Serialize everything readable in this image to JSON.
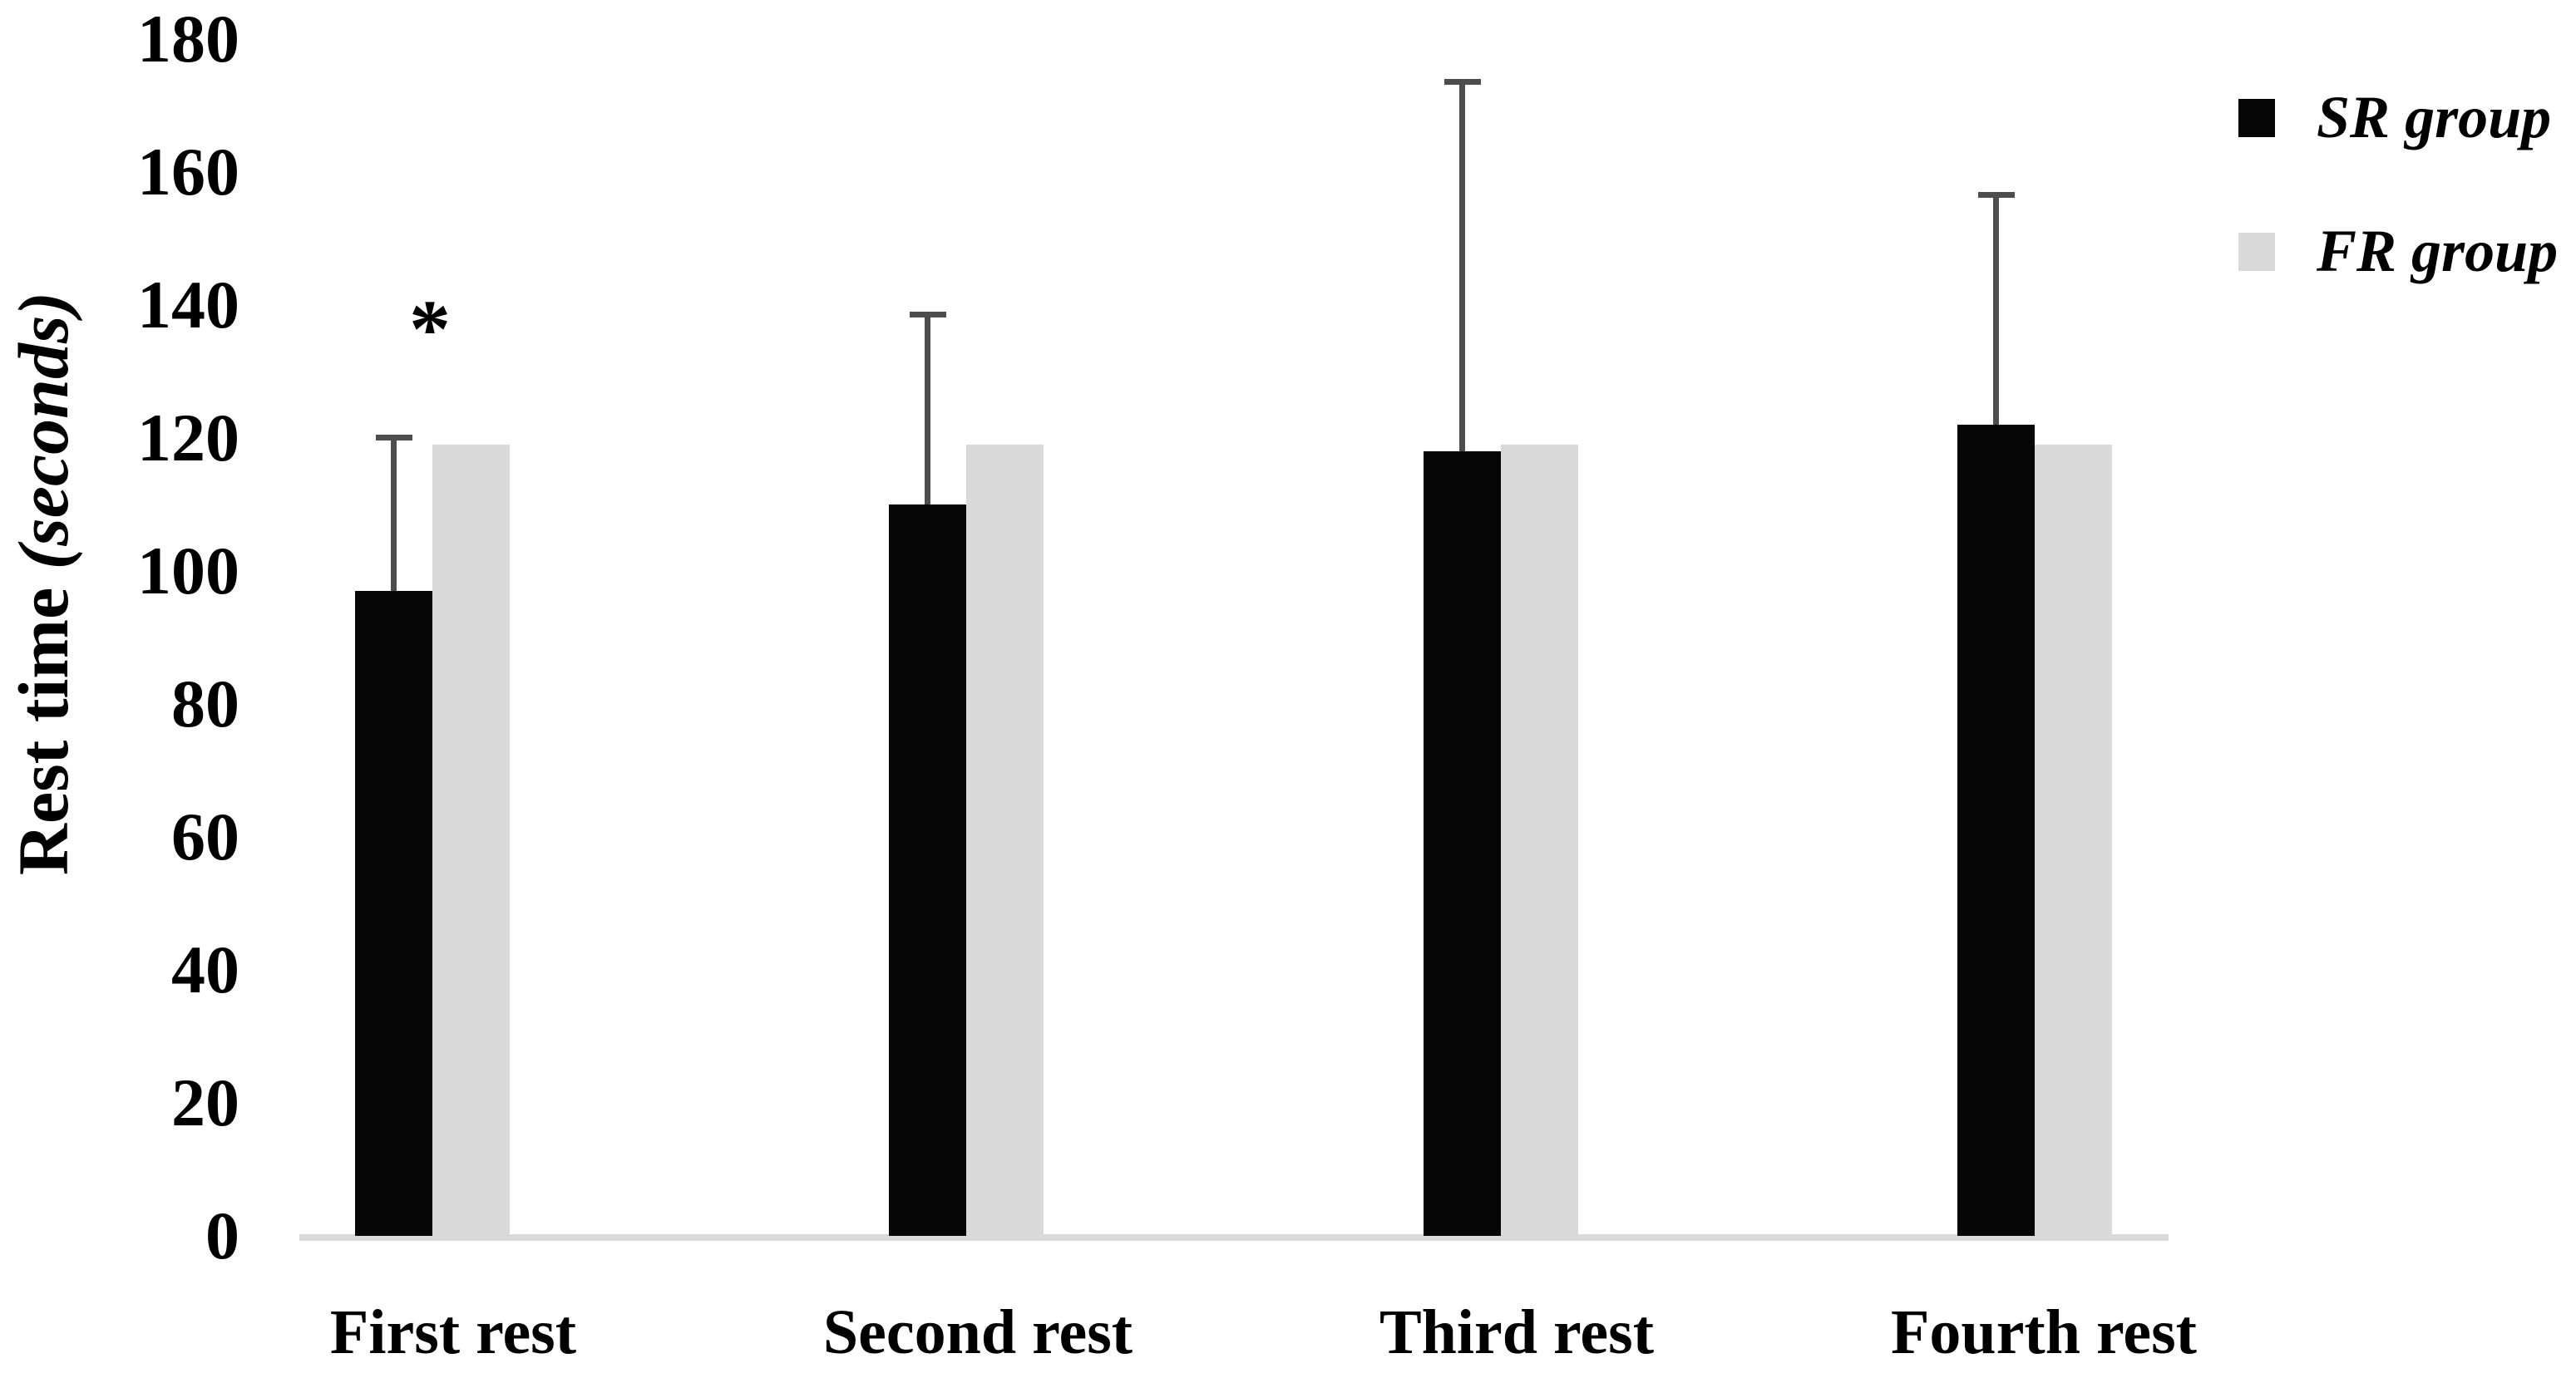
{
  "figure": {
    "y_axis_title_main": "Rest time ",
    "y_axis_title_unit": "(seconds)"
  },
  "legend": {
    "items": [
      {
        "label": "SR group",
        "color": "#060606"
      },
      {
        "label": "FR group",
        "color": "#d9d9d9"
      }
    ]
  },
  "chart_data": {
    "type": "bar",
    "title": "",
    "categories": [
      "First rest",
      "Second rest",
      "Third rest",
      "Fourth rest"
    ],
    "series": [
      {
        "name": "SR group",
        "color": "#060606",
        "values": [
          97,
          110,
          118,
          122
        ],
        "error_upper": [
          23.5,
          29,
          56,
          35
        ]
      },
      {
        "name": "FR group",
        "color": "#d9d9d9",
        "values": [
          119,
          119,
          119,
          119
        ],
        "error_upper": [
          0,
          0,
          0,
          0
        ]
      }
    ],
    "ylabel": "Rest time (seconds)",
    "xlabel": "",
    "ylim": [
      0,
      180
    ],
    "yticks": [
      0,
      20,
      40,
      60,
      80,
      100,
      120,
      140,
      160,
      180
    ],
    "grid": false,
    "legend_position": "top-right",
    "error_bar_color": "#4d4d4d",
    "axis_line_color": "#d9d9d9",
    "significance": {
      "category_index": 0,
      "series": "SR group",
      "symbol": "*"
    }
  }
}
